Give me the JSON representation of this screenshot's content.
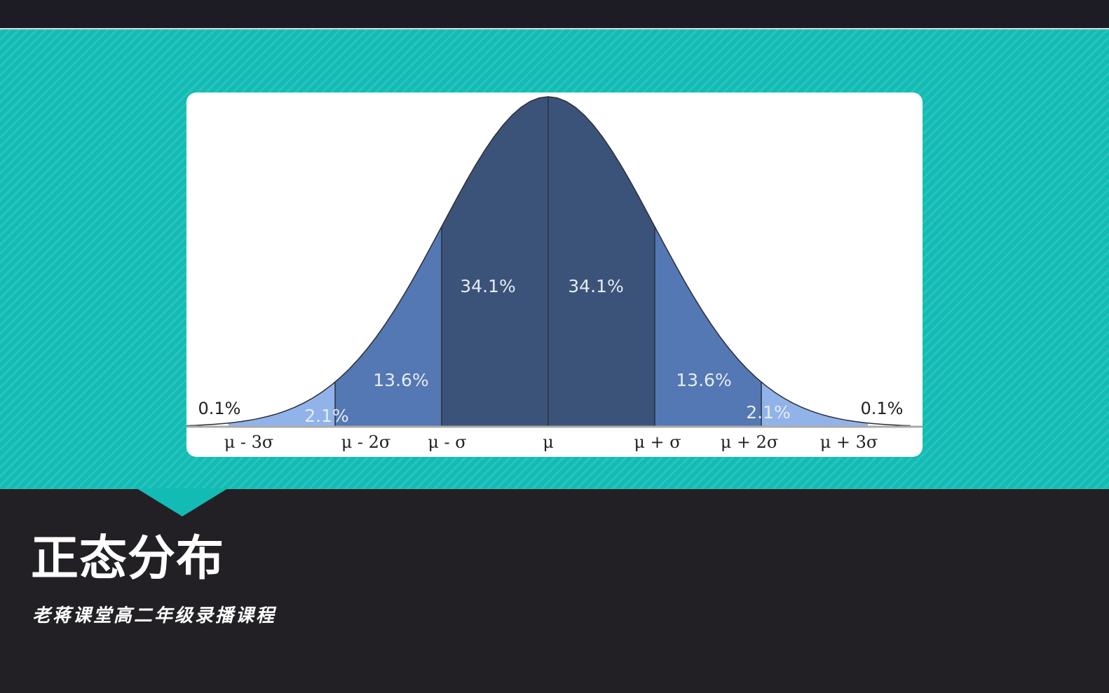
{
  "title": "正态分布",
  "subtitle": "老蒋课堂高二年级录播课程",
  "colors": {
    "background": "#222024",
    "band": "#12bcb4",
    "inner": "#3b5378",
    "middle": "#5378b3",
    "outer": "#91b3ea",
    "tail": "#ffffff"
  },
  "chart_data": {
    "type": "area",
    "curve": "normal-distribution",
    "regions": [
      {
        "range": [
          "-∞",
          "μ - 3σ"
        ],
        "label": "0.1%",
        "value": 0.1
      },
      {
        "range": [
          "μ - 3σ",
          "μ - 2σ"
        ],
        "label": "2.1%",
        "value": 2.1
      },
      {
        "range": [
          "μ - 2σ",
          "μ - σ"
        ],
        "label": "13.6%",
        "value": 13.6
      },
      {
        "range": [
          "μ - σ",
          "μ"
        ],
        "label": "34.1%",
        "value": 34.1
      },
      {
        "range": [
          "μ",
          "μ + σ"
        ],
        "label": "34.1%",
        "value": 34.1
      },
      {
        "range": [
          "μ + σ",
          "μ + 2σ"
        ],
        "label": "13.6%",
        "value": 13.6
      },
      {
        "range": [
          "μ + 2σ",
          "μ + 3σ"
        ],
        "label": "2.1%",
        "value": 2.1
      },
      {
        "range": [
          "μ + 3σ",
          "∞"
        ],
        "label": "0.1%",
        "value": 0.1
      }
    ],
    "tick_labels": [
      "μ - 3σ",
      "μ - 2σ",
      "μ - σ",
      "μ",
      "μ + σ",
      "μ + 2σ",
      "μ + 3σ"
    ],
    "grid": false,
    "legend": "none"
  }
}
